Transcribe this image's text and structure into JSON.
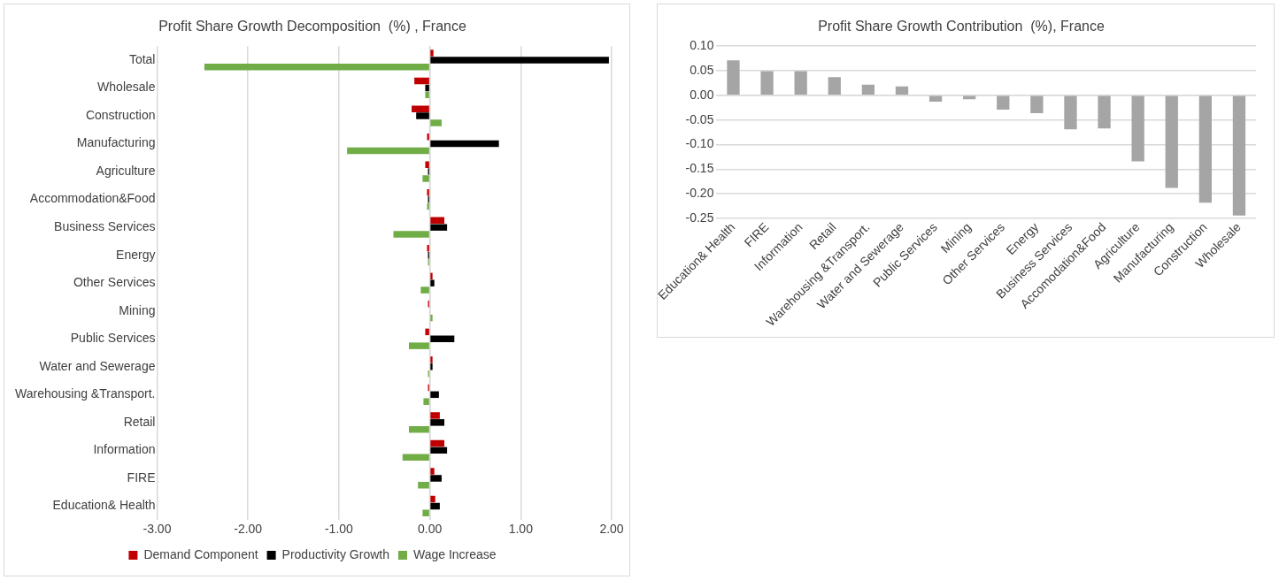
{
  "chart_data": [
    {
      "type": "bar",
      "orientation": "horizontal",
      "title": "Profit Share Growth Decomposition  (%) , France",
      "categories": [
        "Total",
        "Wholesale",
        "Construction",
        "Manufacturing",
        "Agriculture",
        "Accommodation&Food",
        "Business Services",
        "Energy",
        "Other Services",
        "Mining",
        "Public Services",
        "Water and Sewerage",
        "Warehousing &Transport.",
        "Retail",
        "Information",
        "FIRE",
        "Education& Health"
      ],
      "series": [
        {
          "name": "Demand Component",
          "color": "#c00000",
          "values": [
            0.04,
            -0.17,
            -0.2,
            -0.03,
            -0.05,
            -0.03,
            0.16,
            -0.03,
            0.03,
            -0.02,
            -0.05,
            0.03,
            -0.02,
            0.11,
            0.16,
            0.05,
            0.06
          ]
        },
        {
          "name": "Productivity Growth",
          "color": "#000000",
          "values": [
            1.97,
            -0.05,
            -0.15,
            0.76,
            -0.02,
            -0.02,
            0.19,
            -0.02,
            0.05,
            null,
            0.27,
            0.03,
            0.1,
            0.16,
            0.19,
            0.13,
            0.11
          ]
        },
        {
          "name": "Wage Increase",
          "color": "#70ad47",
          "values": [
            -2.48,
            -0.05,
            0.13,
            -0.91,
            -0.08,
            -0.03,
            -0.4,
            -0.02,
            -0.1,
            0.03,
            -0.23,
            -0.02,
            -0.07,
            -0.23,
            -0.3,
            -0.13,
            -0.08
          ]
        }
      ],
      "xlim": [
        -3,
        2
      ],
      "xticks": [
        {
          "value": -3,
          "label": "-3.00"
        },
        {
          "value": -2,
          "label": "-2.00"
        },
        {
          "value": -1,
          "label": "-1.00"
        },
        {
          "value": 0,
          "label": "0.00"
        },
        {
          "value": 1,
          "label": "1.00"
        },
        {
          "value": 2,
          "label": "2.00"
        }
      ],
      "grid": "x",
      "legend": "bottom"
    },
    {
      "type": "bar",
      "title": "Profit Share Growth Contribution  (%), France",
      "categories": [
        "Education& Health",
        "FIRE",
        "Information",
        "Retail",
        "Warehousing &Transport.",
        "Water and Sewerage",
        "Public Services",
        "Mining",
        "Other Services",
        "Energy",
        "Business Services",
        "Accomodation&Food",
        "Agriculture",
        "Manufacturing",
        "Construction",
        "Wholesale"
      ],
      "values": [
        0.071,
        0.049,
        0.049,
        0.037,
        0.022,
        0.018,
        -0.013,
        -0.008,
        -0.029,
        -0.036,
        -0.069,
        -0.067,
        -0.134,
        -0.188,
        -0.218,
        -0.244
      ],
      "color": "#a5a5a5",
      "ylim": [
        -0.25,
        0.1
      ],
      "yticks": [
        {
          "value": -0.25,
          "label": "-0.25"
        },
        {
          "value": -0.2,
          "label": "-0.20"
        },
        {
          "value": -0.15,
          "label": "-0.15"
        },
        {
          "value": -0.1,
          "label": "-0.10"
        },
        {
          "value": -0.05,
          "label": "-0.05"
        },
        {
          "value": 0,
          "label": "0.00"
        },
        {
          "value": 0.05,
          "label": "0.05"
        },
        {
          "value": 0.1,
          "label": "0.10"
        }
      ],
      "grid": "y",
      "legend": false
    }
  ]
}
